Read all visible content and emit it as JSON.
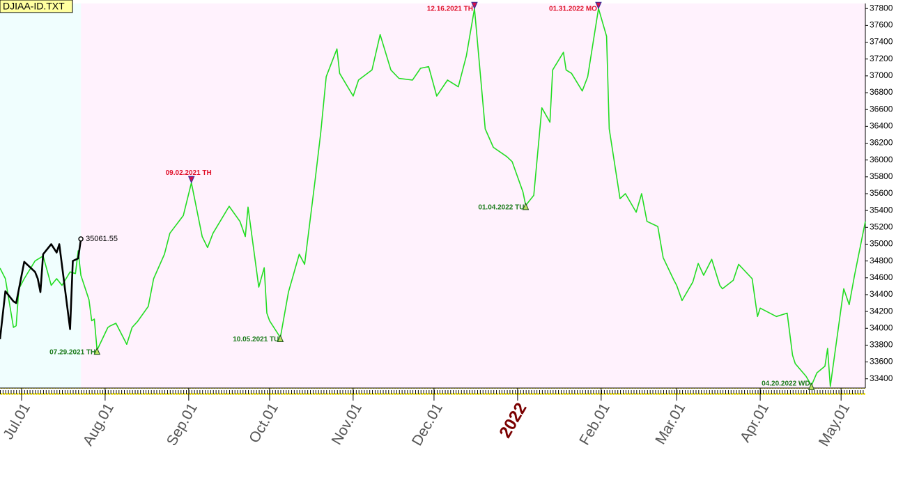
{
  "chart_data": {
    "type": "line",
    "title": "DJIAA-ID.TXT",
    "xlim": [
      "2021-06-23",
      "2022-05-10"
    ],
    "ylim": [
      33290,
      37860
    ],
    "yticks": [
      33400,
      33600,
      33800,
      34000,
      34200,
      34400,
      34600,
      34800,
      35000,
      35200,
      35400,
      35600,
      35800,
      36000,
      36200,
      36400,
      36600,
      36800,
      37000,
      37200,
      37400,
      37600,
      37800
    ],
    "xticks": [
      {
        "value": "2021-07-01",
        "label": "Jul.01"
      },
      {
        "value": "2021-08-01",
        "label": "Aug.01"
      },
      {
        "value": "2021-09-01",
        "label": "Sep.01"
      },
      {
        "value": "2021-10-01",
        "label": "Oct.01"
      },
      {
        "value": "2021-11-01",
        "label": "Nov.01"
      },
      {
        "value": "2021-12-01",
        "label": "Dec.01"
      },
      {
        "value": "2022-01-01",
        "label": "2022"
      },
      {
        "value": "2022-02-01",
        "label": "Feb.01"
      },
      {
        "value": "2022-03-01",
        "label": "Mar.01"
      },
      {
        "value": "2022-04-01",
        "label": "Apr.01"
      },
      {
        "value": "2022-05-01",
        "label": "May.01"
      }
    ],
    "series": [
      {
        "color": "#22dd22",
        "x": [
          "2021-06-23",
          "2021-06-25",
          "2021-06-28",
          "2021-06-29",
          "2021-06-30",
          "2021-07-02",
          "2021-07-06",
          "2021-07-09",
          "2021-07-12",
          "2021-07-14",
          "2021-07-16",
          "2021-07-19",
          "2021-07-21",
          "2021-07-22",
          "2021-07-23",
          "2021-07-26",
          "2021-07-27",
          "2021-07-28",
          "2021-07-29",
          "2021-08-02",
          "2021-08-03",
          "2021-08-05",
          "2021-08-09",
          "2021-08-11",
          "2021-08-13",
          "2021-08-17",
          "2021-08-19",
          "2021-08-23",
          "2021-08-25",
          "2021-08-30",
          "2021-09-02",
          "2021-09-06",
          "2021-09-08",
          "2021-09-10",
          "2021-09-16",
          "2021-09-20",
          "2021-09-22",
          "2021-09-23",
          "2021-09-27",
          "2021-09-29",
          "2021-09-30",
          "2021-10-01",
          "2021-10-05",
          "2021-10-08",
          "2021-10-12",
          "2021-10-14",
          "2021-10-18",
          "2021-10-20",
          "2021-10-22",
          "2021-10-26",
          "2021-10-27",
          "2021-11-01",
          "2021-11-03",
          "2021-11-08",
          "2021-11-11",
          "2021-11-15",
          "2021-11-18",
          "2021-11-23",
          "2021-11-26",
          "2021-11-29",
          "2021-12-02",
          "2021-12-06",
          "2021-12-10",
          "2021-12-13",
          "2021-12-16",
          "2021-12-20",
          "2021-12-23",
          "2021-12-28",
          "2021-12-30",
          "2022-01-03",
          "2022-01-04",
          "2022-01-07",
          "2022-01-10",
          "2022-01-13",
          "2022-01-14",
          "2022-01-18",
          "2022-01-19",
          "2022-01-21",
          "2022-01-25",
          "2022-01-27",
          "2022-01-31",
          "2022-02-03",
          "2022-02-04",
          "2022-02-08",
          "2022-02-10",
          "2022-02-14",
          "2022-02-16",
          "2022-02-18",
          "2022-02-22",
          "2022-02-24",
          "2022-02-28",
          "2022-03-01",
          "2022-03-03",
          "2022-03-07",
          "2022-03-09",
          "2022-03-11",
          "2022-03-14",
          "2022-03-17",
          "2022-03-18",
          "2022-03-22",
          "2022-03-24",
          "2022-03-29",
          "2022-03-31",
          "2022-04-01",
          "2022-04-07",
          "2022-04-11",
          "2022-04-13",
          "2022-04-14",
          "2022-04-18",
          "2022-04-20",
          "2022-04-22",
          "2022-04-25",
          "2022-04-26",
          "2022-04-27",
          "2022-05-02",
          "2022-05-04",
          "2022-05-06",
          "2022-05-10"
        ],
        "values": [
          34715,
          34590,
          34010,
          34030,
          34470,
          34590,
          34800,
          34860,
          34510,
          34590,
          34510,
          34670,
          34650,
          34920,
          34630,
          34340,
          34090,
          34110,
          33740,
          34010,
          34030,
          34060,
          33810,
          34010,
          34080,
          34260,
          34590,
          34880,
          35130,
          35340,
          35730,
          35090,
          34960,
          35130,
          35450,
          35270,
          35090,
          35440,
          34490,
          34720,
          34180,
          34090,
          33890,
          34430,
          34880,
          34760,
          35790,
          36330,
          36990,
          37320,
          37030,
          36760,
          36950,
          37070,
          37490,
          37070,
          36970,
          36950,
          37090,
          37110,
          36760,
          36950,
          36870,
          37240,
          37800,
          36370,
          36150,
          36040,
          35980,
          35620,
          35460,
          35580,
          36620,
          36450,
          37070,
          37280,
          37070,
          37030,
          36820,
          36990,
          37800,
          37470,
          36370,
          35540,
          35600,
          35380,
          35600,
          35270,
          35210,
          34840,
          34570,
          34510,
          34330,
          34550,
          34770,
          34630,
          34820,
          34510,
          34470,
          34570,
          34760,
          34590,
          34140,
          34240,
          34140,
          34180,
          33680,
          33580,
          33430,
          33320,
          33470,
          33550,
          33760,
          33310,
          34470,
          34280,
          34630,
          35270
        ]
      },
      {
        "color": "#000000",
        "x": [
          "2021-06-23",
          "2021-06-25",
          "2021-06-28",
          "2021-06-29",
          "2021-07-02",
          "2021-07-06",
          "2021-07-07",
          "2021-07-08",
          "2021-07-09",
          "2021-07-12",
          "2021-07-14",
          "2021-07-15",
          "2021-07-19",
          "2021-07-20",
          "2021-07-22",
          "2021-07-23"
        ],
        "values": [
          33870,
          34440,
          34320,
          34300,
          34790,
          34670,
          34590,
          34430,
          34880,
          35000,
          34900,
          35000,
          33990,
          34800,
          34830,
          35061.55
        ]
      }
    ],
    "annotations": [
      {
        "label": "07.29.2021 TH",
        "date": "2021-07-29",
        "value": 33740,
        "color": "#1a7a1a",
        "arrow": "up"
      },
      {
        "label": "09.02.2021 TH",
        "date": "2021-09-02",
        "value": 35730,
        "color": "#e0102a",
        "arrow": "down"
      },
      {
        "label": "10.05.2021 TU",
        "date": "2021-10-05",
        "value": 33890,
        "color": "#1a7a1a",
        "arrow": "up"
      },
      {
        "label": "12.16.2021 TH",
        "date": "2021-12-16",
        "value": 37800,
        "color": "#e0102a",
        "arrow": "down"
      },
      {
        "label": "01.04.2022 TU",
        "date": "2022-01-04",
        "value": 35460,
        "color": "#1a7a1a",
        "arrow": "up"
      },
      {
        "label": "01.31.2022 MO",
        "date": "2022-01-31",
        "value": 37800,
        "color": "#e0102a",
        "arrow": "down"
      },
      {
        "label": "04.20.2022 WD",
        "date": "2022-04-20",
        "value": 33320,
        "color": "#1a7a1a",
        "arrow": "up"
      }
    ]
  }
}
